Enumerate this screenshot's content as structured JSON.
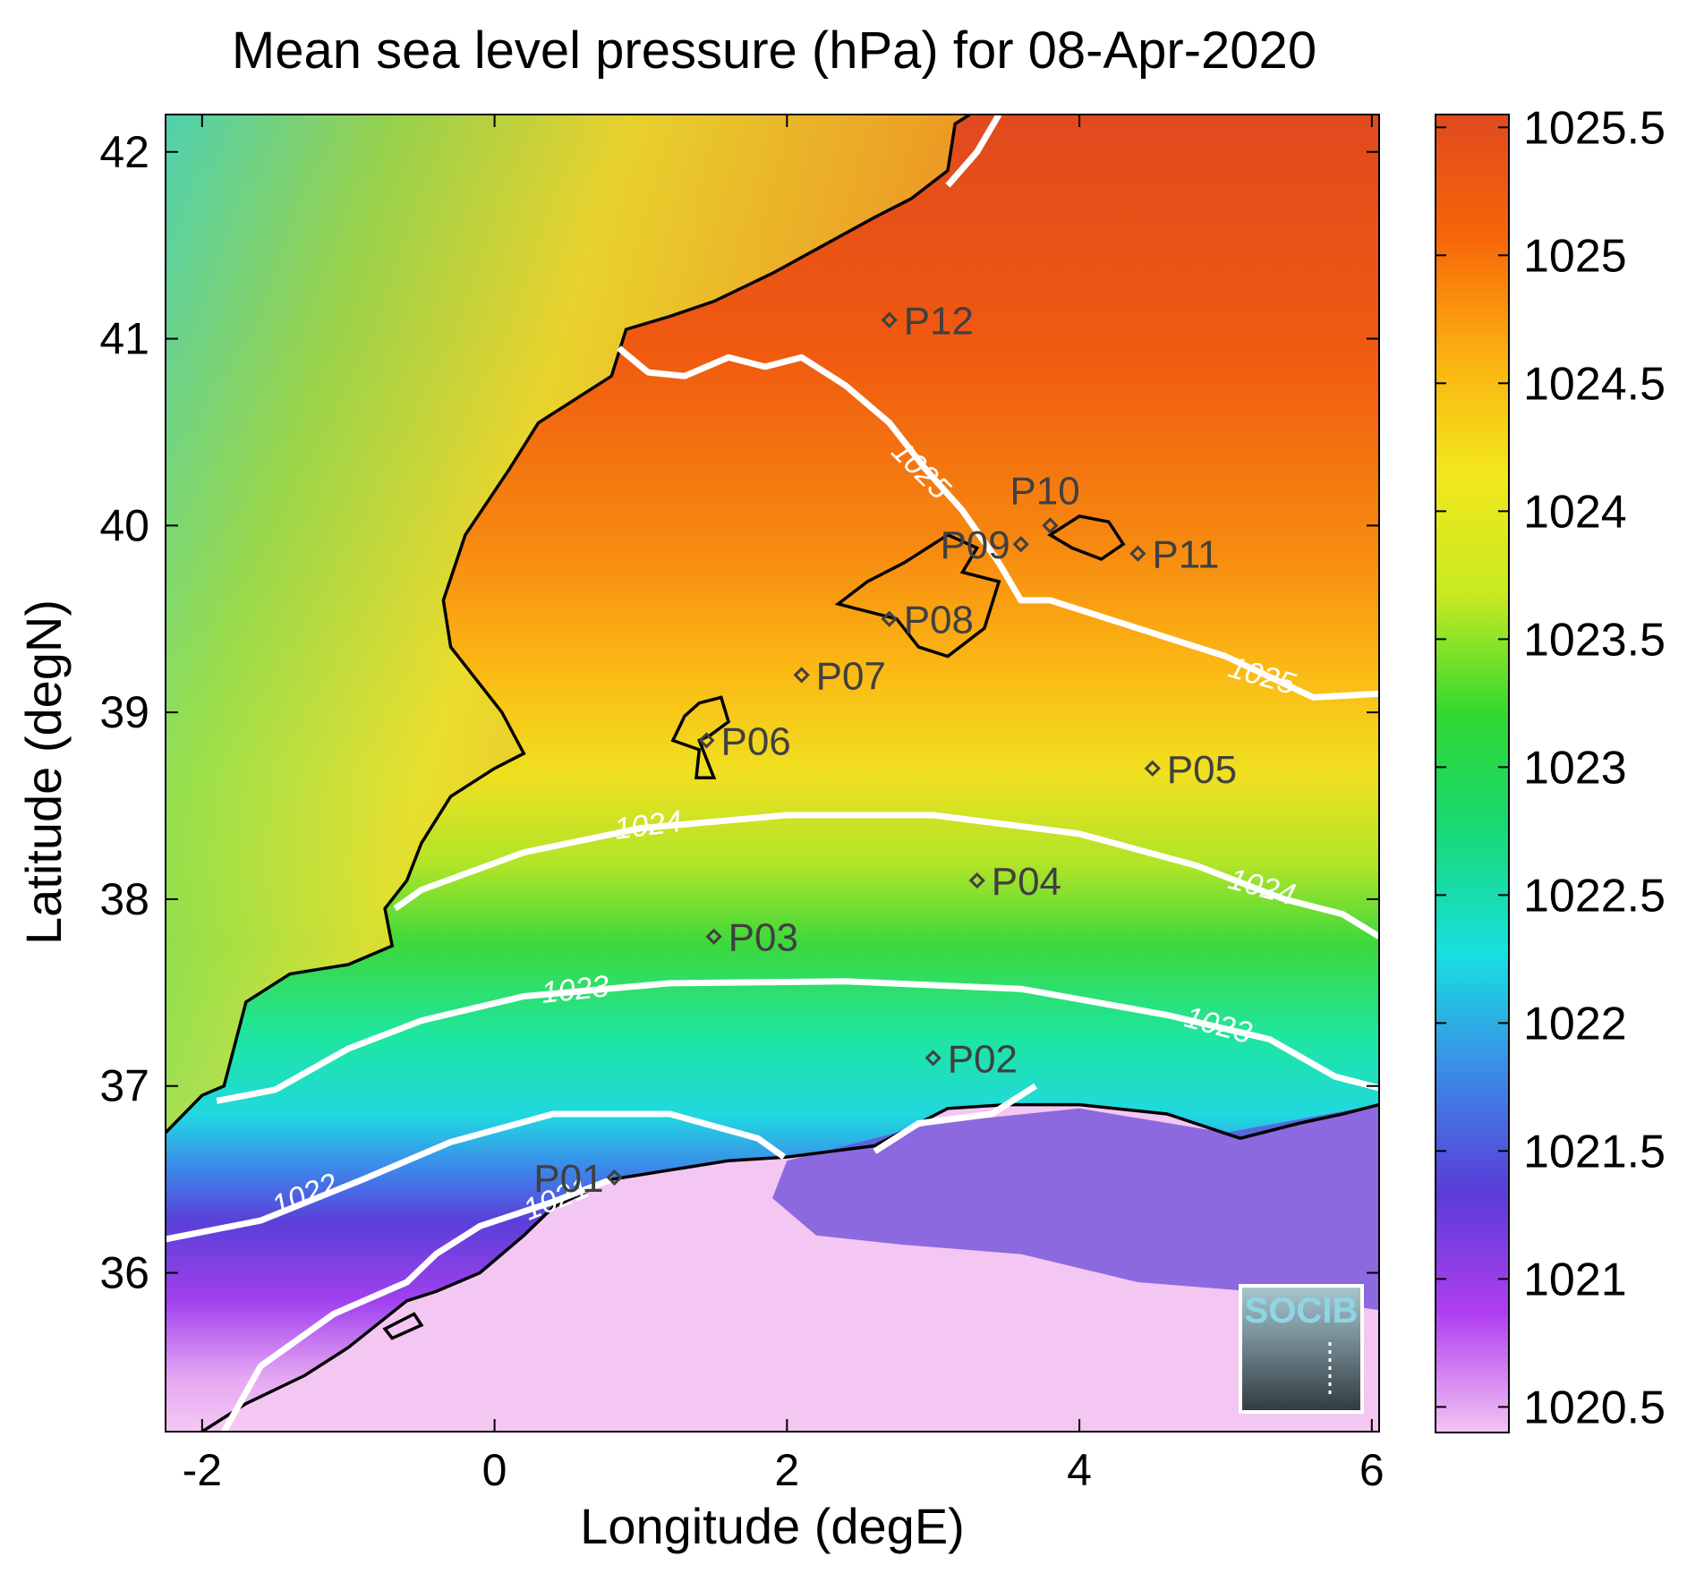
{
  "title": "Mean sea level pressure (hPa) for 08-Apr-2020",
  "xlabel": "Longitude (degE)",
  "ylabel": "Latitude (degN)",
  "xlim": [
    -2.25,
    6.05
  ],
  "ylim": [
    35.15,
    42.2
  ],
  "xticks": [
    {
      "value": -2,
      "label": "-2"
    },
    {
      "value": 0,
      "label": "0"
    },
    {
      "value": 2,
      "label": "2"
    },
    {
      "value": 4,
      "label": "4"
    },
    {
      "value": 6,
      "label": "6"
    }
  ],
  "yticks": [
    {
      "value": 36,
      "label": "36"
    },
    {
      "value": 37,
      "label": "37"
    },
    {
      "value": 38,
      "label": "38"
    },
    {
      "value": 39,
      "label": "39"
    },
    {
      "value": 40,
      "label": "40"
    },
    {
      "value": 41,
      "label": "41"
    },
    {
      "value": 42,
      "label": "42"
    }
  ],
  "colorbar": {
    "range": [
      1020.4,
      1025.55
    ],
    "ticks": [
      {
        "value": 1020.5,
        "label": "1020.5"
      },
      {
        "value": 1021,
        "label": "1021"
      },
      {
        "value": 1021.5,
        "label": "1021.5"
      },
      {
        "value": 1022,
        "label": "1022"
      },
      {
        "value": 1022.5,
        "label": "1022.5"
      },
      {
        "value": 1023,
        "label": "1023"
      },
      {
        "value": 1023.5,
        "label": "1023.5"
      },
      {
        "value": 1024,
        "label": "1024"
      },
      {
        "value": 1024.5,
        "label": "1024.5"
      },
      {
        "value": 1025,
        "label": "1025"
      },
      {
        "value": 1025.5,
        "label": "1025.5"
      }
    ],
    "colors": [
      "#f3c4f3",
      "#b03ef0",
      "#5a3cd8",
      "#3c8ae8",
      "#18e0e0",
      "#19d978",
      "#30d830",
      "#c8ea20",
      "#f2e81c",
      "#fbb010",
      "#f86408",
      "#e04a20"
    ]
  },
  "stations": [
    {
      "name": "P01",
      "lon": 0.82,
      "lat": 36.51,
      "label_side": "left"
    },
    {
      "name": "P02",
      "lon": 3.0,
      "lat": 37.15,
      "label_side": "right"
    },
    {
      "name": "P03",
      "lon": 1.5,
      "lat": 37.8,
      "label_side": "right"
    },
    {
      "name": "P04",
      "lon": 3.3,
      "lat": 38.1,
      "label_side": "right"
    },
    {
      "name": "P05",
      "lon": 4.5,
      "lat": 38.7,
      "label_side": "right"
    },
    {
      "name": "P06",
      "lon": 1.45,
      "lat": 38.85,
      "label_side": "right"
    },
    {
      "name": "P07",
      "lon": 2.1,
      "lat": 39.2,
      "label_side": "right"
    },
    {
      "name": "P08",
      "lon": 2.7,
      "lat": 39.5,
      "label_side": "right"
    },
    {
      "name": "P09",
      "lon": 3.6,
      "lat": 39.9,
      "label_side": "left"
    },
    {
      "name": "P10",
      "lon": 3.8,
      "lat": 40.0,
      "label_side": "above"
    },
    {
      "name": "P11",
      "lon": 4.4,
      "lat": 39.85,
      "label_side": "right"
    },
    {
      "name": "P12",
      "lon": 2.7,
      "lat": 41.1,
      "label_side": "right"
    }
  ],
  "contours": [
    {
      "level": 1021,
      "label": "1021",
      "points": [
        [
          -1.85,
          35.15
        ],
        [
          -1.6,
          35.5
        ],
        [
          -1.1,
          35.78
        ],
        [
          -0.6,
          35.95
        ],
        [
          -0.4,
          36.1
        ],
        [
          -0.1,
          36.25
        ],
        [
          0.4,
          36.38
        ],
        [
          0.8,
          36.5
        ]
      ],
      "labels_at": [
        [
          0.42,
          36.4,
          -22
        ]
      ]
    },
    {
      "level": 1022,
      "label": "1022",
      "points": [
        [
          -2.25,
          36.18
        ],
        [
          -1.6,
          36.28
        ],
        [
          -0.9,
          36.5
        ],
        [
          -0.3,
          36.7
        ],
        [
          0.4,
          36.85
        ],
        [
          1.2,
          36.85
        ],
        [
          1.8,
          36.72
        ],
        [
          1.98,
          36.62
        ]
      ],
      "labels_at": [
        [
          -1.3,
          36.42,
          -22
        ]
      ]
    },
    {
      "level": 1022,
      "label": "",
      "points": [
        [
          2.6,
          36.65
        ],
        [
          2.9,
          36.8
        ],
        [
          3.4,
          36.85
        ],
        [
          3.7,
          37.0
        ]
      ],
      "labels_at": []
    },
    {
      "level": 1023,
      "label": "1023",
      "points": [
        [
          -1.9,
          36.92
        ],
        [
          -1.5,
          36.98
        ],
        [
          -1.0,
          37.2
        ],
        [
          -0.5,
          37.35
        ],
        [
          0.2,
          37.48
        ],
        [
          1.2,
          37.55
        ],
        [
          2.4,
          37.56
        ],
        [
          3.6,
          37.52
        ],
        [
          4.6,
          37.38
        ],
        [
          5.3,
          37.25
        ],
        [
          5.75,
          37.05
        ],
        [
          6.05,
          36.99
        ]
      ],
      "labels_at": [
        [
          0.55,
          37.52,
          -6
        ],
        [
          4.95,
          37.33,
          15
        ]
      ]
    },
    {
      "level": 1024,
      "label": "1024",
      "points": [
        [
          -0.68,
          37.95
        ],
        [
          -0.5,
          38.05
        ],
        [
          0.2,
          38.25
        ],
        [
          1.0,
          38.38
        ],
        [
          2.0,
          38.45
        ],
        [
          3.0,
          38.45
        ],
        [
          4.0,
          38.35
        ],
        [
          4.8,
          38.18
        ],
        [
          5.4,
          38.0
        ],
        [
          5.8,
          37.92
        ],
        [
          6.05,
          37.8
        ]
      ],
      "labels_at": [
        [
          1.05,
          38.4,
          -7
        ],
        [
          5.25,
          38.07,
          15
        ]
      ]
    },
    {
      "level": 1025,
      "label": "1025",
      "points": [
        [
          0.85,
          40.95
        ],
        [
          1.05,
          40.82
        ],
        [
          1.3,
          40.8
        ],
        [
          1.6,
          40.9
        ],
        [
          1.85,
          40.85
        ],
        [
          2.1,
          40.9
        ],
        [
          2.4,
          40.75
        ],
        [
          2.7,
          40.55
        ],
        [
          2.95,
          40.3
        ],
        [
          3.2,
          40.08
        ],
        [
          3.45,
          39.8
        ],
        [
          3.6,
          39.6
        ],
        [
          3.8,
          39.6
        ],
        [
          4.4,
          39.45
        ],
        [
          5.0,
          39.3
        ],
        [
          5.6,
          39.08
        ],
        [
          6.05,
          39.1
        ]
      ],
      "labels_at": [
        [
          2.92,
          40.3,
          45
        ],
        [
          5.25,
          39.2,
          16
        ]
      ]
    },
    {
      "level": 1025,
      "label": "",
      "points": [
        [
          3.1,
          41.82
        ],
        [
          3.3,
          42.0
        ],
        [
          3.45,
          42.2
        ]
      ],
      "labels_at": []
    }
  ],
  "coastlines": [
    [
      [
        -2.25,
        36.75
      ],
      [
        -2.0,
        36.95
      ],
      [
        -1.85,
        37.0
      ],
      [
        -1.75,
        37.3
      ],
      [
        -1.7,
        37.45
      ],
      [
        -1.4,
        37.6
      ],
      [
        -1.0,
        37.65
      ],
      [
        -0.7,
        37.75
      ],
      [
        -0.75,
        37.95
      ],
      [
        -0.6,
        38.1
      ],
      [
        -0.5,
        38.3
      ],
      [
        -0.3,
        38.55
      ],
      [
        0.0,
        38.7
      ],
      [
        0.2,
        38.78
      ],
      [
        0.05,
        39.0
      ],
      [
        -0.3,
        39.35
      ],
      [
        -0.35,
        39.6
      ],
      [
        -0.2,
        39.95
      ],
      [
        0.1,
        40.3
      ],
      [
        0.3,
        40.55
      ],
      [
        0.6,
        40.7
      ],
      [
        0.8,
        40.8
      ],
      [
        0.9,
        41.05
      ],
      [
        1.2,
        41.12
      ],
      [
        1.5,
        41.2
      ],
      [
        1.9,
        41.35
      ],
      [
        2.25,
        41.5
      ],
      [
        2.6,
        41.65
      ],
      [
        2.85,
        41.75
      ],
      [
        3.1,
        41.9
      ],
      [
        3.15,
        42.15
      ],
      [
        3.25,
        42.2
      ]
    ],
    [
      [
        -2.0,
        35.15
      ],
      [
        -1.7,
        35.3
      ],
      [
        -1.3,
        35.45
      ],
      [
        -1.0,
        35.6
      ],
      [
        -0.6,
        35.85
      ],
      [
        -0.4,
        35.9
      ],
      [
        -0.1,
        36.0
      ],
      [
        0.2,
        36.2
      ],
      [
        0.4,
        36.35
      ],
      [
        0.8,
        36.5
      ],
      [
        1.2,
        36.55
      ],
      [
        1.6,
        36.6
      ],
      [
        2.0,
        36.62
      ],
      [
        2.3,
        36.65
      ],
      [
        2.6,
        36.68
      ],
      [
        2.9,
        36.8
      ],
      [
        3.1,
        36.88
      ],
      [
        3.5,
        36.9
      ],
      [
        4.0,
        36.9
      ],
      [
        4.6,
        36.85
      ],
      [
        5.1,
        36.72
      ],
      [
        5.5,
        36.8
      ],
      [
        5.8,
        36.85
      ],
      [
        6.05,
        36.9
      ]
    ]
  ],
  "islands": [
    [
      [
        2.35,
        39.58
      ],
      [
        2.55,
        39.7
      ],
      [
        2.8,
        39.8
      ],
      [
        3.1,
        39.95
      ],
      [
        3.3,
        39.88
      ],
      [
        3.2,
        39.75
      ],
      [
        3.45,
        39.7
      ],
      [
        3.35,
        39.45
      ],
      [
        3.1,
        39.3
      ],
      [
        2.9,
        39.35
      ],
      [
        2.75,
        39.5
      ],
      [
        2.5,
        39.55
      ]
    ],
    [
      [
        3.8,
        39.95
      ],
      [
        4.0,
        40.05
      ],
      [
        4.2,
        40.02
      ],
      [
        4.3,
        39.9
      ],
      [
        4.15,
        39.82
      ],
      [
        3.95,
        39.88
      ]
    ],
    [
      [
        1.22,
        38.85
      ],
      [
        1.3,
        38.98
      ],
      [
        1.4,
        39.05
      ],
      [
        1.55,
        39.08
      ],
      [
        1.6,
        38.95
      ],
      [
        1.48,
        38.88
      ],
      [
        1.4,
        38.85
      ],
      [
        1.5,
        38.65
      ],
      [
        1.38,
        38.65
      ],
      [
        1.4,
        38.8
      ]
    ],
    [
      [
        -0.75,
        35.7
      ],
      [
        -0.55,
        35.78
      ],
      [
        -0.5,
        35.72
      ],
      [
        -0.7,
        35.65
      ]
    ]
  ],
  "logo": {
    "text": "SOCIB"
  }
}
